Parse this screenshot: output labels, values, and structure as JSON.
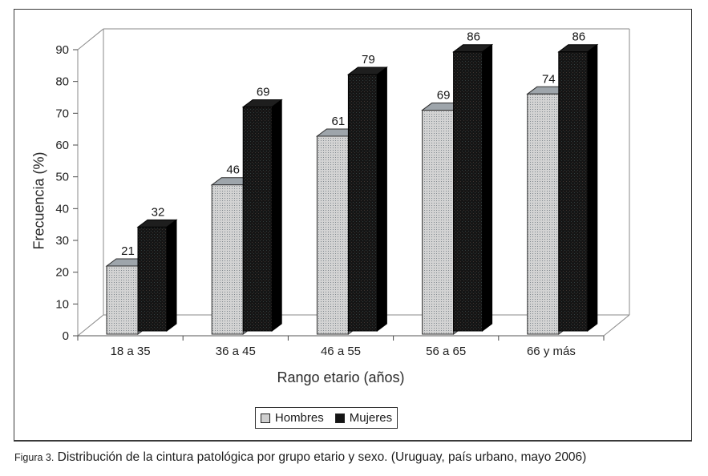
{
  "figure": {
    "caption_prefix": "Figura 3.",
    "caption_text": " Distribución de la cintura patológica por grupo  etario y sexo. (Uruguay, país urbano, mayo 2006)"
  },
  "chart_data": {
    "type": "bar",
    "subtype": "3d-clustered",
    "title": "",
    "xlabel": "Rango etario (años)",
    "ylabel": "Frecuencia (%)",
    "categories": [
      "18 a 35",
      "36 a 45",
      "46 a 55",
      "56 a 65",
      "66 y más"
    ],
    "series": [
      {
        "name": "Hombres",
        "values": [
          21,
          46,
          61,
          69,
          74
        ],
        "color": "#d3d3d3"
      },
      {
        "name": "Mujeres",
        "values": [
          32,
          69,
          79,
          86,
          86
        ],
        "color": "#151515"
      }
    ],
    "ylim": [
      0,
      90
    ],
    "ytick_step": 10,
    "yticks": [
      0,
      10,
      20,
      30,
      40,
      50,
      60,
      70,
      80,
      90
    ],
    "grid": false,
    "legend_position": "bottom",
    "value_labels": true
  }
}
